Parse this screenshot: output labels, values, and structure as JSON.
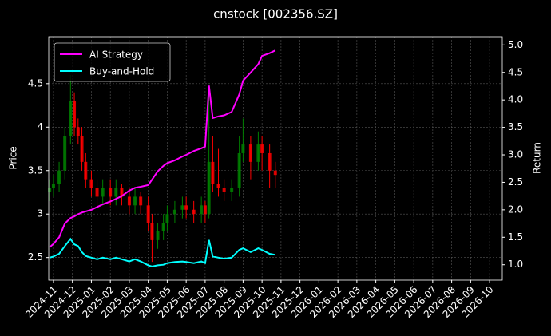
{
  "chart_data": {
    "type": "candlestick",
    "title": "cnstock [002356.SZ]",
    "ylabel": "Price",
    "y2label": "Return",
    "x": [
      -0.2,
      0,
      0.3,
      0.6,
      0.9,
      1.1,
      1.3,
      1.5,
      1.7,
      2.0,
      2.3,
      2.6,
      3.0,
      3.3,
      3.6,
      4.0,
      4.3,
      4.6,
      5.0,
      5.2,
      5.5,
      5.8,
      6.0,
      6.4,
      6.8,
      7.0,
      7.4,
      7.8,
      8.0,
      8.2,
      8.4,
      8.7,
      9.0,
      9.4,
      9.8,
      10.0,
      10.4,
      10.8,
      11.0,
      11.4,
      11.7
    ],
    "open": [
      3.25,
      3.3,
      3.35,
      3.5,
      3.9,
      4.3,
      4.0,
      3.9,
      3.6,
      3.4,
      3.3,
      3.2,
      3.3,
      3.2,
      3.3,
      3.2,
      3.1,
      3.2,
      3.1,
      2.9,
      2.7,
      2.8,
      2.9,
      3.0,
      3.05,
      3.1,
      3.05,
      3.0,
      3.1,
      3.0,
      3.6,
      3.35,
      3.3,
      3.25,
      3.3,
      3.7,
      3.8,
      3.6,
      3.8,
      3.7,
      3.5
    ],
    "high": [
      3.4,
      3.45,
      3.6,
      4.0,
      4.6,
      4.4,
      4.1,
      4.0,
      3.7,
      3.5,
      3.4,
      3.4,
      3.4,
      3.4,
      3.35,
      3.3,
      3.3,
      3.25,
      3.2,
      3.0,
      2.9,
      3.0,
      3.1,
      3.15,
      3.2,
      3.2,
      3.15,
      3.2,
      3.15,
      4.4,
      3.9,
      3.75,
      3.4,
      3.4,
      3.9,
      4.1,
      3.9,
      3.95,
      3.9,
      3.8,
      3.6
    ],
    "low": [
      3.15,
      3.2,
      3.25,
      3.4,
      3.8,
      3.9,
      3.8,
      3.5,
      3.3,
      3.2,
      3.1,
      3.1,
      3.1,
      3.1,
      3.1,
      3.0,
      3.0,
      3.0,
      2.8,
      2.45,
      2.6,
      2.7,
      2.8,
      2.9,
      2.95,
      2.95,
      2.9,
      2.9,
      2.9,
      2.95,
      3.25,
      3.2,
      3.15,
      3.15,
      3.2,
      3.6,
      3.4,
      3.5,
      3.5,
      3.3,
      3.3
    ],
    "close": [
      3.3,
      3.35,
      3.5,
      3.9,
      4.3,
      4.0,
      3.9,
      3.6,
      3.4,
      3.3,
      3.2,
      3.3,
      3.2,
      3.3,
      3.2,
      3.1,
      3.2,
      3.1,
      2.9,
      2.7,
      2.8,
      2.9,
      3.0,
      3.05,
      3.1,
      3.05,
      3.0,
      3.1,
      3.0,
      3.6,
      3.35,
      3.3,
      3.25,
      3.3,
      3.7,
      3.8,
      3.6,
      3.8,
      3.7,
      3.5,
      3.45
    ],
    "up_color": "#008000",
    "down_color": "#ff0000",
    "series": [
      {
        "name": "AI Strategy",
        "color": "#ff00ff",
        "axis": "y2",
        "values": [
          1.32,
          1.38,
          1.5,
          1.75,
          1.85,
          1.88,
          1.92,
          1.95,
          1.97,
          2.0,
          2.05,
          2.1,
          2.15,
          2.2,
          2.25,
          2.35,
          2.4,
          2.42,
          2.45,
          2.55,
          2.7,
          2.8,
          2.85,
          2.9,
          2.97,
          3.0,
          3.07,
          3.12,
          3.15,
          4.26,
          3.67,
          3.7,
          3.72,
          3.78,
          4.1,
          4.35,
          4.5,
          4.65,
          4.8,
          4.85,
          4.9
        ]
      },
      {
        "name": "Buy-and-Hold",
        "color": "#00ffff",
        "axis": "y2",
        "values": [
          1.13,
          1.15,
          1.2,
          1.34,
          1.47,
          1.37,
          1.34,
          1.23,
          1.16,
          1.13,
          1.1,
          1.13,
          1.1,
          1.13,
          1.1,
          1.06,
          1.1,
          1.06,
          0.99,
          0.97,
          0.99,
          1.0,
          1.03,
          1.05,
          1.06,
          1.05,
          1.03,
          1.06,
          1.03,
          1.45,
          1.15,
          1.13,
          1.11,
          1.13,
          1.27,
          1.3,
          1.23,
          1.3,
          1.27,
          1.2,
          1.18
        ]
      }
    ],
    "xlim": [
      -0.25,
      23.67
    ],
    "ylim": [
      2.24,
      5.04
    ],
    "y2lim": [
      0.72,
      5.15
    ],
    "xticks": [
      {
        "value": 0,
        "label": "2024-11"
      },
      {
        "value": 1,
        "label": "2024-12"
      },
      {
        "value": 2,
        "label": "2025-01"
      },
      {
        "value": 3,
        "label": "2025-02"
      },
      {
        "value": 4,
        "label": "2025-03"
      },
      {
        "value": 5,
        "label": "2025-04"
      },
      {
        "value": 6,
        "label": "2025-05"
      },
      {
        "value": 7,
        "label": "2025-06"
      },
      {
        "value": 8,
        "label": "2025-07"
      },
      {
        "value": 9,
        "label": "2025-08"
      },
      {
        "value": 10,
        "label": "2025-09"
      },
      {
        "value": 11,
        "label": "2025-10"
      },
      {
        "value": 12,
        "label": "2025-11"
      },
      {
        "value": 13,
        "label": "2025-12"
      },
      {
        "value": 14,
        "label": "2026-01"
      },
      {
        "value": 15,
        "label": "2026-02"
      },
      {
        "value": 16,
        "label": "2026-03"
      },
      {
        "value": 17,
        "label": "2026-04"
      },
      {
        "value": 18,
        "label": "2026-05"
      },
      {
        "value": 19,
        "label": "2026-06"
      },
      {
        "value": 20,
        "label": "2026-07"
      },
      {
        "value": 21,
        "label": "2026-08"
      },
      {
        "value": 22,
        "label": "2026-09"
      },
      {
        "value": 23,
        "label": "2026-10"
      }
    ],
    "yticks": [
      2.5,
      3.0,
      3.5,
      4.0,
      4.5
    ],
    "y2ticks": [
      {
        "value": 1.0,
        "label": "1.0"
      },
      1.5,
      {
        "value": 2.0,
        "label": "2.0"
      },
      2.5,
      {
        "value": 3.0,
        "label": "3.0"
      },
      3.5,
      {
        "value": 4.0,
        "label": "4.0"
      },
      4.5,
      {
        "value": 5.0,
        "label": "5.0"
      }
    ],
    "grid": true,
    "legend": "upper left"
  }
}
